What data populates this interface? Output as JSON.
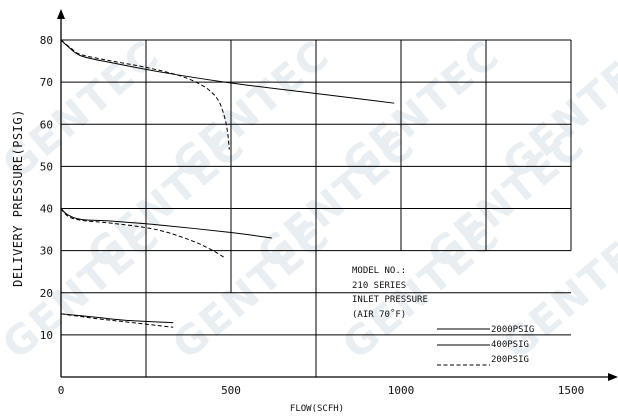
{
  "chart_data": {
    "type": "line",
    "xlabel": "FLOW(SCFH)",
    "ylabel": "DELIVERY PRESSURE(PSIG)",
    "xlim": [
      0,
      1500
    ],
    "ylim": [
      0,
      80
    ],
    "x_ticks": [
      "0",
      "500",
      "1000",
      "1500"
    ],
    "y_ticks": [
      "10",
      "20",
      "30",
      "40",
      "50",
      "60",
      "70",
      "80"
    ],
    "grid": true,
    "annotation": {
      "lines": [
        "MODEL NO.:",
        "210 SERIES",
        "INLET PRESSURE",
        "(AIR 70˚F)"
      ]
    },
    "legend": [
      {
        "label": "2000PSIG",
        "style": "solid"
      },
      {
        "label": "400PSIG",
        "style": "solid"
      },
      {
        "label": "200PSIG",
        "style": "dashed"
      }
    ],
    "series": [
      {
        "set": 80,
        "inlet": "2000PSIG",
        "style": "solid",
        "points": [
          [
            0,
            80
          ],
          [
            20,
            78.5
          ],
          [
            60,
            76.2
          ],
          [
            150,
            74.6
          ],
          [
            300,
            72.3
          ],
          [
            500,
            69.8
          ],
          [
            750,
            67.3
          ],
          [
            980,
            65
          ]
        ]
      },
      {
        "set": 80,
        "inlet": "200PSIG",
        "style": "dashed",
        "points": [
          [
            0,
            80
          ],
          [
            30,
            78
          ],
          [
            60,
            76.5
          ],
          [
            150,
            75
          ],
          [
            250,
            73.5
          ],
          [
            350,
            71.5
          ],
          [
            420,
            69
          ],
          [
            460,
            66
          ],
          [
            480,
            62
          ],
          [
            490,
            58
          ],
          [
            495,
            54
          ]
        ]
      },
      {
        "set": 40,
        "inlet": "2000PSIG",
        "style": "solid",
        "points": [
          [
            0,
            40
          ],
          [
            20,
            38.5
          ],
          [
            60,
            37.4
          ],
          [
            150,
            37
          ],
          [
            300,
            36
          ],
          [
            500,
            34.3
          ],
          [
            620,
            33
          ]
        ]
      },
      {
        "set": 40,
        "inlet": "200PSIG",
        "style": "dashed",
        "points": [
          [
            0,
            40
          ],
          [
            20,
            38.2
          ],
          [
            60,
            37.2
          ],
          [
            150,
            36.5
          ],
          [
            280,
            35
          ],
          [
            380,
            32.5
          ],
          [
            440,
            30.3
          ],
          [
            480,
            28.4
          ]
        ]
      },
      {
        "set": 15,
        "inlet": "2000PSIG",
        "style": "solid",
        "points": [
          [
            0,
            15
          ],
          [
            100,
            14.2
          ],
          [
            200,
            13.4
          ],
          [
            330,
            12.9
          ]
        ]
      },
      {
        "set": 15,
        "inlet": "200PSIG",
        "style": "dashed",
        "points": [
          [
            0,
            15
          ],
          [
            100,
            13.9
          ],
          [
            200,
            13
          ],
          [
            330,
            11.8
          ]
        ]
      }
    ]
  },
  "watermark": "GENTEC"
}
